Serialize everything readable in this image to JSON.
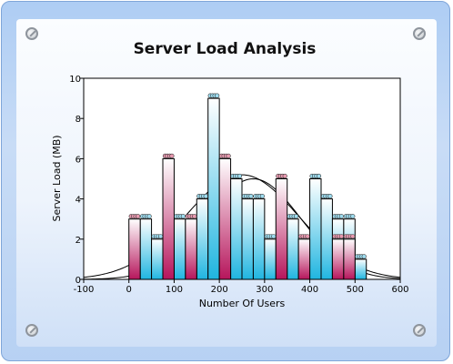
{
  "chart_data": {
    "type": "bar",
    "title": "Server Load Analysis",
    "xlabel": "Number Of Users",
    "ylabel": "Server Load (MB)",
    "xlim": [
      -100,
      600
    ],
    "ylim": [
      0,
      10
    ],
    "x_ticks": [
      "-100",
      "0",
      "100",
      "200",
      "300",
      "400",
      "500",
      "600"
    ],
    "y_ticks": [
      "0",
      "2",
      "4",
      "6",
      "8",
      "10"
    ],
    "bin_width": 25,
    "series": [
      {
        "color_top": "#ffffff",
        "color_bottom": "#b6155b",
        "bin_starts": [
          0,
          75,
          125,
          200,
          325,
          375,
          450,
          475
        ],
        "values": [
          3,
          6,
          3,
          6,
          5,
          2,
          2,
          2
        ]
      },
      {
        "color_top": "#ffffff",
        "color_bottom": "#1fb5e0",
        "bin_starts": [
          25,
          50,
          100,
          150,
          175,
          225,
          250,
          275,
          300,
          350,
          400,
          425,
          450,
          475,
          500
        ],
        "values": [
          3,
          2,
          3,
          4,
          9,
          5,
          4,
          4,
          2,
          3,
          5,
          4,
          3,
          3,
          1
        ]
      }
    ],
    "series_values_as_text": {
      "s1": [
        "3",
        "6",
        "3",
        "6",
        "5",
        "2",
        "2",
        "2"
      ],
      "s2": [
        "3",
        "2",
        "3",
        "4",
        "9",
        "5",
        "4",
        "4",
        "2",
        "3",
        "5",
        "4",
        "3",
        "3",
        "1"
      ]
    },
    "distribution_curves": [
      {
        "mean": 250,
        "std": 125,
        "peak": 5.2
      },
      {
        "mean": 275,
        "std": 105,
        "peak": 5.0
      }
    ],
    "grid": false,
    "legend": "none"
  }
}
